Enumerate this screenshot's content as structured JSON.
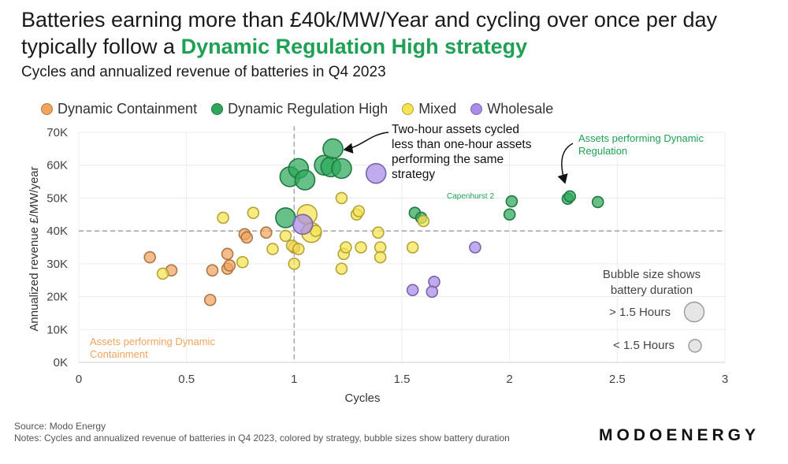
{
  "header": {
    "title_part1": "Batteries earning more than £40k/MW/Year and cycling over once per day typically follow a ",
    "title_highlight": "Dynamic Regulation High strategy",
    "subtitle": "Cycles and annualized revenue of batteries in Q4 2023"
  },
  "footer": {
    "source": "Source: Modo Energy",
    "notes": "Notes: Cycles and annualized revenue of batteries in Q4 2023, colored by strategy, bubble sizes show battery duration",
    "brand": "MODOENERGY"
  },
  "colors": {
    "dc": "#f0a45e",
    "drh": "#2da85a",
    "mixed": "#f7e34f",
    "wholesale": "#a98be9",
    "highlight": "#1fa055"
  },
  "chart_data": {
    "type": "scatter",
    "title": "Batteries earning more than £40k/MW/Year and cycling over once per day typically follow a Dynamic Regulation High strategy",
    "subtitle": "Cycles and annualized revenue of batteries in Q4 2023",
    "xlabel": "Cycles",
    "ylabel": "Annualized revenue £/MW/year",
    "xlim": [
      0,
      3
    ],
    "ylim": [
      0,
      70000
    ],
    "xticks": [
      0,
      0.5,
      1,
      1.5,
      2,
      2.5,
      3
    ],
    "xtick_labels": [
      "0",
      "0.5",
      "1",
      "1.5",
      "2",
      "2.5",
      "3"
    ],
    "yticks": [
      0,
      10000,
      20000,
      30000,
      40000,
      50000,
      60000,
      70000
    ],
    "ytick_labels": [
      "0K",
      "10K",
      "20K",
      "30K",
      "40K",
      "50K",
      "60K",
      "70K"
    ],
    "reference_lines": {
      "x": 1,
      "y": 40000
    },
    "legend": [
      {
        "key": "dc",
        "label": "Dynamic Containment"
      },
      {
        "key": "drh",
        "label": "Dynamic Regulation High"
      },
      {
        "key": "mixed",
        "label": "Mixed"
      },
      {
        "key": "wholesale",
        "label": "Wholesale"
      }
    ],
    "series": [
      {
        "name": "Dynamic Containment",
        "key": "dc",
        "points": [
          {
            "x": 0.33,
            "y": 32000,
            "d": "short"
          },
          {
            "x": 0.43,
            "y": 28000,
            "d": "short"
          },
          {
            "x": 0.62,
            "y": 28000,
            "d": "short"
          },
          {
            "x": 0.69,
            "y": 33000,
            "d": "short"
          },
          {
            "x": 0.69,
            "y": 28500,
            "d": "short"
          },
          {
            "x": 0.7,
            "y": 29500,
            "d": "short"
          },
          {
            "x": 0.77,
            "y": 39000,
            "d": "short"
          },
          {
            "x": 0.78,
            "y": 38000,
            "d": "short"
          },
          {
            "x": 0.87,
            "y": 39500,
            "d": "short"
          },
          {
            "x": 0.61,
            "y": 19000,
            "d": "short"
          },
          {
            "x": 1.0,
            "y": 35000,
            "d": "short"
          }
        ]
      },
      {
        "name": "Dynamic Regulation High",
        "key": "drh",
        "points": [
          {
            "x": 0.98,
            "y": 56500,
            "d": "long"
          },
          {
            "x": 1.02,
            "y": 59000,
            "d": "long"
          },
          {
            "x": 1.05,
            "y": 55500,
            "d": "long"
          },
          {
            "x": 0.96,
            "y": 44000,
            "d": "long"
          },
          {
            "x": 1.14,
            "y": 60000,
            "d": "long"
          },
          {
            "x": 1.17,
            "y": 59500,
            "d": "long"
          },
          {
            "x": 1.22,
            "y": 59000,
            "d": "long"
          },
          {
            "x": 1.18,
            "y": 65000,
            "d": "long"
          },
          {
            "x": 1.56,
            "y": 45500,
            "d": "short"
          },
          {
            "x": 1.59,
            "y": 44000,
            "d": "short"
          },
          {
            "x": 2.01,
            "y": 49000,
            "d": "short"
          },
          {
            "x": 2.0,
            "y": 45000,
            "d": "short"
          },
          {
            "x": 2.27,
            "y": 49800,
            "d": "short"
          },
          {
            "x": 2.28,
            "y": 50500,
            "d": "short"
          },
          {
            "x": 2.41,
            "y": 48800,
            "d": "short"
          }
        ]
      },
      {
        "name": "Mixed",
        "key": "mixed",
        "points": [
          {
            "x": 0.39,
            "y": 27000,
            "d": "short"
          },
          {
            "x": 0.67,
            "y": 44000,
            "d": "short"
          },
          {
            "x": 0.81,
            "y": 45500,
            "d": "short"
          },
          {
            "x": 0.76,
            "y": 30500,
            "d": "short"
          },
          {
            "x": 0.9,
            "y": 34500,
            "d": "short"
          },
          {
            "x": 0.96,
            "y": 38500,
            "d": "short"
          },
          {
            "x": 0.99,
            "y": 35500,
            "d": "short"
          },
          {
            "x": 1.0,
            "y": 30000,
            "d": "short"
          },
          {
            "x": 1.02,
            "y": 34500,
            "d": "short"
          },
          {
            "x": 1.06,
            "y": 45000,
            "d": "long"
          },
          {
            "x": 1.08,
            "y": 39500,
            "d": "long"
          },
          {
            "x": 1.1,
            "y": 40000,
            "d": "short"
          },
          {
            "x": 1.22,
            "y": 50000,
            "d": "short"
          },
          {
            "x": 1.23,
            "y": 33000,
            "d": "short"
          },
          {
            "x": 1.22,
            "y": 28500,
            "d": "short"
          },
          {
            "x": 1.24,
            "y": 35000,
            "d": "short"
          },
          {
            "x": 1.29,
            "y": 45000,
            "d": "short"
          },
          {
            "x": 1.3,
            "y": 46000,
            "d": "short"
          },
          {
            "x": 1.31,
            "y": 35000,
            "d": "short"
          },
          {
            "x": 1.39,
            "y": 39500,
            "d": "short"
          },
          {
            "x": 1.4,
            "y": 35000,
            "d": "short"
          },
          {
            "x": 1.4,
            "y": 32000,
            "d": "short"
          },
          {
            "x": 1.55,
            "y": 35000,
            "d": "short"
          },
          {
            "x": 1.6,
            "y": 43000,
            "d": "short"
          }
        ]
      },
      {
        "name": "Wholesale",
        "key": "wholesale",
        "points": [
          {
            "x": 1.04,
            "y": 42000,
            "d": "long"
          },
          {
            "x": 1.38,
            "y": 57500,
            "d": "long"
          },
          {
            "x": 1.84,
            "y": 35000,
            "d": "short"
          },
          {
            "x": 1.55,
            "y": 22000,
            "d": "short"
          },
          {
            "x": 1.65,
            "y": 24500,
            "d": "short"
          },
          {
            "x": 1.64,
            "y": 21500,
            "d": "short"
          }
        ]
      }
    ],
    "annotations": [
      {
        "key": "two_hour",
        "text": [
          "Two-hour assets cycled",
          "less than one-hour assets",
          "performing the same",
          "strategy"
        ]
      },
      {
        "key": "assets_drh",
        "text": [
          "Assets performing Dynamic",
          "Regulation"
        ]
      },
      {
        "key": "assets_dc",
        "text": [
          "Assets performing Dynamic",
          "Containment"
        ]
      },
      {
        "key": "capenhurst",
        "text": [
          "Capenhurst 2"
        ]
      }
    ],
    "size_legend": {
      "title": [
        "Bubble size shows",
        "battery duration"
      ],
      "long_label": "> 1.5 Hours",
      "short_label": "< 1.5 Hours"
    }
  }
}
